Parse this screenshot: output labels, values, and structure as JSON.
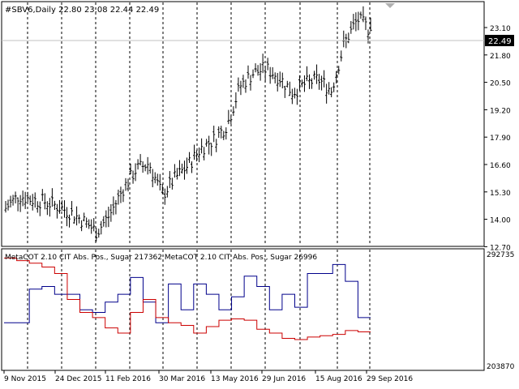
{
  "main_chart": {
    "header": "#SBV6,Daily  22.80 23.08 22.44 22.49",
    "price_axis": [
      "23.10",
      "21.80",
      "20.50",
      "19.20",
      "17.90",
      "16.60",
      "15.30",
      "14.00",
      "12.70"
    ],
    "current_price": "22.49",
    "current_price_bg": "#000000",
    "chart_data": {
      "type": "bar",
      "title": "#SBV6,Daily",
      "ylim": [
        12.5,
        23.75
      ],
      "x": [
        "2015-11-09",
        "2015-11-20",
        "2015-12-01",
        "2015-12-12",
        "2015-12-24",
        "2016-01-04",
        "2016-01-15",
        "2016-01-26",
        "2016-02-11",
        "2016-02-22",
        "2016-03-04",
        "2016-03-15",
        "2016-03-30",
        "2016-04-10",
        "2016-04-21",
        "2016-05-02",
        "2016-05-13",
        "2016-05-24",
        "2016-06-04",
        "2016-06-15",
        "2016-06-29",
        "2016-07-10",
        "2016-07-21",
        "2016-08-01",
        "2016-08-15",
        "2016-08-26",
        "2016-09-06",
        "2016-09-17",
        "2016-09-29"
      ],
      "close": [
        14.2,
        14.8,
        14.6,
        14.5,
        14.3,
        14.0,
        13.6,
        13.1,
        13.9,
        15.1,
        16.0,
        16.3,
        14.8,
        15.6,
        16.2,
        17.0,
        17.4,
        18.1,
        19.9,
        20.5,
        20.7,
        20.3,
        19.6,
        20.0,
        20.2,
        19.7,
        21.9,
        23.0,
        22.49
      ],
      "last_bar": {
        "open": 22.8,
        "high": 23.08,
        "low": 22.44,
        "close": 22.49
      }
    }
  },
  "indicator": {
    "header": "MetaCOT 2.10 CIT Abs. Pos., Sugar  217362  MetaCOT 2.10 CIT Abs. Pos., Sugar  26996",
    "axis_top": "292735",
    "axis_bottom": "203870",
    "chart_data": {
      "type": "line",
      "title": "MetaCOT 2.10 CIT Abs. Pos., Sugar",
      "ylim": [
        203870,
        292735
      ],
      "x": [
        "2015-11-09",
        "2015-11-20",
        "2015-12-01",
        "2015-12-12",
        "2015-12-24",
        "2016-01-04",
        "2016-01-15",
        "2016-01-26",
        "2016-02-11",
        "2016-02-22",
        "2016-03-04",
        "2016-03-15",
        "2016-03-30",
        "2016-04-10",
        "2016-04-21",
        "2016-05-02",
        "2016-05-13",
        "2016-05-24",
        "2016-06-04",
        "2016-06-15",
        "2016-06-29",
        "2016-07-10",
        "2016-07-21",
        "2016-08-01",
        "2016-08-15",
        "2016-08-26",
        "2016-09-06",
        "2016-09-17",
        "2016-09-29"
      ],
      "series": [
        {
          "color": "#00008b",
          "values": [
            240000,
            240000,
            266000,
            268000,
            262000,
            262000,
            250000,
            248000,
            256000,
            262000,
            275000,
            256000,
            240000,
            270000,
            250000,
            270000,
            262000,
            250000,
            260000,
            276000,
            268000,
            250000,
            262000,
            252000,
            278000,
            278000,
            285000,
            272000,
            244000
          ]
        },
        {
          "color": "#cc0000",
          "values": [
            290000,
            288000,
            286000,
            283000,
            278000,
            258000,
            248000,
            244000,
            236000,
            232000,
            248000,
            258000,
            244000,
            240000,
            238000,
            232000,
            237000,
            242000,
            243000,
            242000,
            235000,
            232000,
            228000,
            227000,
            229000,
            230000,
            231000,
            234000,
            233000
          ]
        }
      ]
    }
  },
  "time_axis": [
    "9 Nov 2015",
    "24 Dec 2015",
    "11 Feb 2016",
    "30 Mar 2016",
    "13 May 2016",
    "29 Jun 2016",
    "15 Aug 2016",
    "29 Sep 2016"
  ]
}
